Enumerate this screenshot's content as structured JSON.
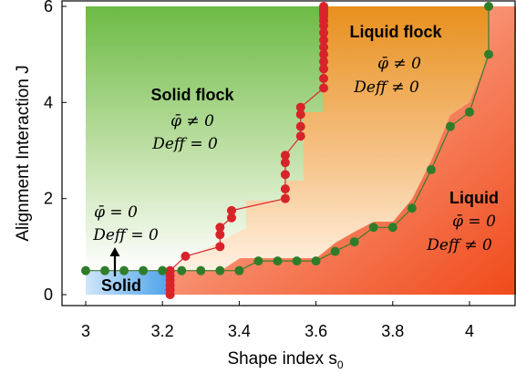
{
  "chart_data": {
    "type": "scatter",
    "xlabel": "Shape index s",
    "xlabel_sub": "0",
    "ylabel": "Alignment Interaction J",
    "xlim": [
      2.99,
      4.12
    ],
    "ylim": [
      -0.1,
      6.05
    ],
    "x_ticks": [
      "3",
      "3.2",
      "3.4",
      "3.6",
      "3.8",
      "4"
    ],
    "y_ticks": [
      "0",
      "2",
      "4",
      "6"
    ],
    "grid": false,
    "regions": [
      {
        "name": "Solid flock",
        "order_param": "φ̄ ≠ 0",
        "diffusion": "Deff = 0",
        "color": "#76c04f"
      },
      {
        "name": "Liquid flock",
        "order_param": "φ̄ ≠ 0",
        "diffusion": "Deff ≠ 0",
        "color": "#eb9529"
      },
      {
        "name": "Liquid",
        "order_param": "φ̄ = 0",
        "diffusion": "Deff ≠ 0",
        "color": "#f05a24"
      },
      {
        "name": "Solid",
        "order_param": "φ̄ = 0",
        "diffusion": "Deff = 0",
        "color": "#5aa8ea"
      }
    ],
    "series": [
      {
        "marker": "red",
        "color": "#d8232a",
        "x": [
          3.22,
          3.22,
          3.22,
          3.22,
          3.22,
          3.22,
          3.26,
          3.35,
          3.35,
          3.35,
          3.38,
          3.38,
          3.52,
          3.52,
          3.52,
          3.52,
          3.52,
          3.56,
          3.56,
          3.56,
          3.56,
          3.62,
          3.62,
          3.62,
          3.62,
          3.62,
          3.62,
          3.62,
          3.62,
          3.62,
          3.62,
          3.62,
          3.62,
          3.62,
          3.62,
          3.62
        ],
        "y": [
          0.0,
          0.1,
          0.2,
          0.3,
          0.4,
          0.5,
          0.8,
          1.0,
          1.25,
          1.4,
          1.6,
          1.75,
          2.0,
          2.2,
          2.5,
          2.75,
          2.9,
          3.3,
          3.5,
          3.75,
          3.9,
          4.3,
          4.5,
          4.7,
          4.85,
          5.0,
          5.15,
          5.3,
          5.45,
          5.6,
          5.7,
          5.8,
          5.85,
          5.9,
          5.95,
          6.0
        ]
      },
      {
        "marker": "green",
        "color": "#2f7d2a",
        "x": [
          3.0,
          3.05,
          3.1,
          3.15,
          3.2,
          3.25,
          3.3,
          3.35,
          3.4,
          3.45,
          3.5,
          3.55,
          3.6,
          3.65,
          3.7,
          3.75,
          3.8,
          3.85,
          3.9,
          3.95,
          4.0,
          4.05,
          4.05
        ],
        "y": [
          0.5,
          0.5,
          0.5,
          0.5,
          0.5,
          0.5,
          0.5,
          0.5,
          0.5,
          0.7,
          0.7,
          0.7,
          0.7,
          0.9,
          1.1,
          1.4,
          1.4,
          1.8,
          2.6,
          3.5,
          3.8,
          5.0,
          6.0
        ]
      }
    ]
  }
}
